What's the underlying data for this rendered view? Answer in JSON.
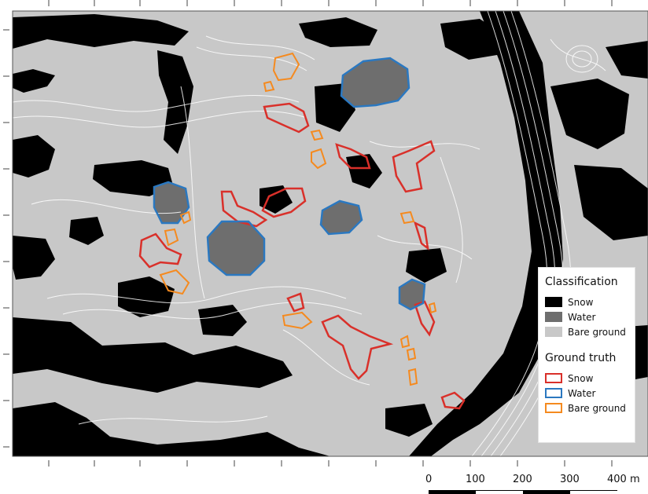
{
  "colors": {
    "bare_ground": "#c8c8c8",
    "snow": "#000000",
    "water": "#6e6e6e",
    "contour": "#ffffff",
    "gt_snow": "#d9302a",
    "gt_water": "#2b78c0",
    "gt_bare": "#f58a1f"
  },
  "legend": {
    "classification_title": "Classification",
    "classification_items": [
      {
        "label": "Snow",
        "fill": "#000000"
      },
      {
        "label": "Water",
        "fill": "#6e6e6e"
      },
      {
        "label": "Bare ground",
        "fill": "#c8c8c8"
      }
    ],
    "ground_truth_title": "Ground truth",
    "ground_truth_items": [
      {
        "label": "Snow",
        "stroke": "#d9302a"
      },
      {
        "label": "Water",
        "stroke": "#2b78c0"
      },
      {
        "label": "Bare ground",
        "stroke": "#f58a1f"
      }
    ]
  },
  "scale_bar": {
    "labels": [
      "0",
      "100",
      "200",
      "300",
      "400 m"
    ]
  }
}
